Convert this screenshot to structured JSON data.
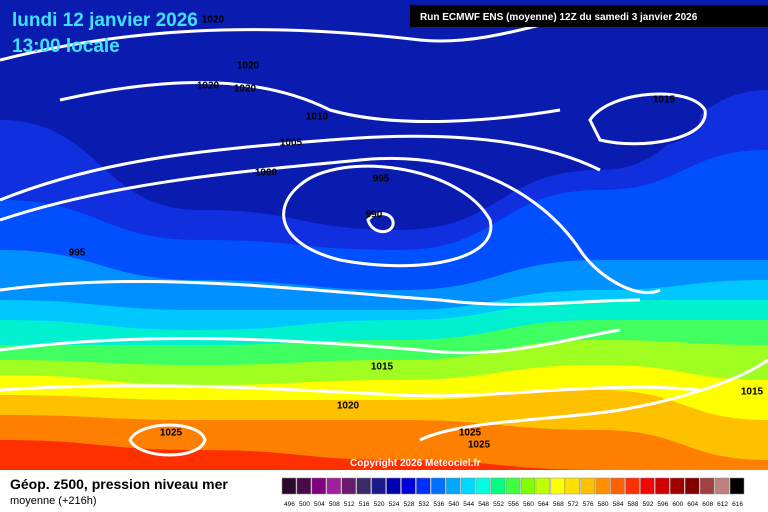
{
  "header": {
    "date": "lundi 12 janvier 2026",
    "time": "13:00 locale",
    "run": "Run ECMWF ENS (moyenne) 12Z du samedi 3 janvier 2026",
    "copyright": "Copyright 2026 Meteociel.fr"
  },
  "isobar_labels": [
    "1020",
    "1020",
    "1020",
    "1020",
    "1010",
    "1005",
    "1000",
    "995",
    "990",
    "995",
    "1015",
    "1015",
    "1020",
    "1025",
    "1025",
    "1025",
    "1015"
  ],
  "footer": {
    "title": "Géop. z500, pression niveau mer",
    "subtitle": "moyenne  (+216h)"
  },
  "colorbar": {
    "labels": [
      496,
      500,
      504,
      508,
      512,
      516,
      520,
      524,
      528,
      532,
      536,
      540,
      544,
      548,
      552,
      556,
      560,
      564,
      568,
      572,
      576,
      580,
      584,
      588,
      592,
      596,
      600,
      604,
      608,
      612,
      616
    ],
    "colors": [
      "#2a0a2a",
      "#4a0a4a",
      "#800080",
      "#a020a0",
      "#6a1a6a",
      "#3a2a6a",
      "#1a1a8a",
      "#0000b0",
      "#0000d8",
      "#0030ff",
      "#0070ff",
      "#00a8ff",
      "#00d8ff",
      "#00ffe0",
      "#00ff80",
      "#40ff40",
      "#80ff00",
      "#c0ff00",
      "#ffff00",
      "#ffe000",
      "#ffc000",
      "#ff9000",
      "#ff6000",
      "#ff3000",
      "#ff0000",
      "#d00000",
      "#a00000",
      "#800000",
      "#a04040",
      "#c08080",
      "#000000"
    ]
  }
}
